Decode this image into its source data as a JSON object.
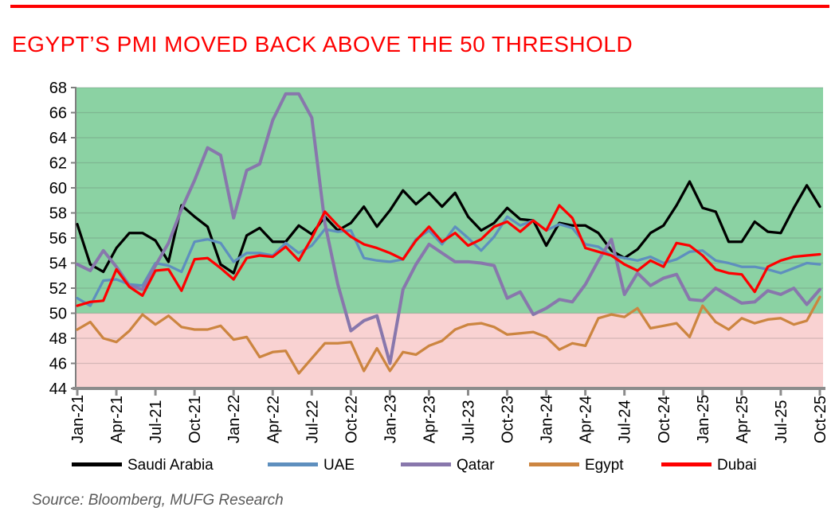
{
  "header": {
    "title": "EGYPT’S PMI MOVED BACK ABOVE THE 50 THRESHOLD"
  },
  "source_note": "Source: Bloomberg, MUFG Research",
  "colors": {
    "accent_red": "#fe0000",
    "axis_gray": "#7f7f7f",
    "axis_base_gray": "#8c8c8c",
    "source_text_gray": "#595959",
    "above_threshold_bg": "#8bd2a3",
    "below_threshold_bg": "#f9d2d2"
  },
  "chart_data": {
    "type": "line",
    "title": "",
    "xlabel": "",
    "ylabel": "",
    "ylim": [
      44,
      68
    ],
    "y_ticks": [
      44,
      46,
      48,
      50,
      52,
      54,
      56,
      58,
      60,
      62,
      64,
      66,
      68
    ],
    "threshold": 50,
    "x_start": "Jan-21",
    "x_interval": "monthly",
    "x_tick_step_months": 3,
    "x_tick_labels": [
      "Jan-21",
      "Apr-21",
      "Jul-21",
      "Oct-21",
      "Jan-22",
      "Apr-22",
      "Jul-22",
      "Oct-22",
      "Jan-23",
      "Apr-23",
      "Jul-23",
      "Oct-23",
      "Jan-24",
      "Apr-24",
      "Jul-24",
      "Oct-24",
      "Jan-25",
      "Apr-25",
      "Jul-25",
      "Oct-25"
    ],
    "grid": true,
    "legend_position": "bottom",
    "series": [
      {
        "name": "Saudi Arabia",
        "color": "#000000",
        "values": [
          57.1,
          53.9,
          53.3,
          55.2,
          56.4,
          56.4,
          55.8,
          54.1,
          58.6,
          57.7,
          56.9,
          53.9,
          53.2,
          56.2,
          56.8,
          55.7,
          55.7,
          57.0,
          56.3,
          57.7,
          56.6,
          57.2,
          58.5,
          56.9,
          58.2,
          59.8,
          58.7,
          59.6,
          58.5,
          59.6,
          57.7,
          56.6,
          57.2,
          58.4,
          57.5,
          57.4,
          55.4,
          57.2,
          57.0,
          57.0,
          56.4,
          55.0,
          54.4,
          55.1,
          56.4,
          57.0,
          58.6,
          60.5,
          58.4,
          58.1,
          55.7,
          55.7,
          57.3,
          56.5,
          56.4,
          58.4,
          60.2,
          58.5
        ]
      },
      {
        "name": "UAE",
        "color": "#5e8fbe",
        "values": [
          51.2,
          50.6,
          52.6,
          52.7,
          52.3,
          52.2,
          54.0,
          53.8,
          53.3,
          55.7,
          55.9,
          55.6,
          54.1,
          54.8,
          54.8,
          54.6,
          55.6,
          54.8,
          55.4,
          56.7,
          56.5,
          56.6,
          54.4,
          54.2,
          54.1,
          54.3,
          55.9,
          56.6,
          55.5,
          56.9,
          56.0,
          55.0,
          56.1,
          57.7,
          57.0,
          57.4,
          56.6,
          57.1,
          56.8,
          55.5,
          55.3,
          54.6,
          54.4,
          54.2,
          54.5,
          54.0,
          54.3,
          54.9,
          55.0,
          54.2,
          54.0,
          53.7,
          53.7,
          53.5,
          53.2,
          53.6,
          54.0,
          53.9
        ]
      },
      {
        "name": "Qatar",
        "color": "#8877ac",
        "values": [
          53.9,
          53.4,
          55.0,
          53.7,
          52.2,
          51.9,
          53.8,
          55.6,
          58.3,
          60.6,
          63.2,
          62.6,
          57.6,
          61.4,
          61.9,
          65.4,
          67.5,
          67.5,
          65.6,
          57.2,
          52.3,
          48.6,
          49.4,
          49.8,
          46.0,
          51.9,
          53.9,
          55.5,
          54.8,
          54.1,
          54.1,
          54.0,
          53.8,
          51.2,
          51.7,
          49.9,
          50.4,
          51.1,
          50.9,
          52.3,
          54.2,
          55.9,
          51.5,
          53.2,
          52.2,
          52.8,
          53.1,
          51.1,
          51.0,
          52.0,
          51.4,
          50.8,
          50.9,
          51.8,
          51.5,
          52.0,
          50.7,
          51.9
        ]
      },
      {
        "name": "Egypt",
        "color": "#cc8540",
        "values": [
          48.7,
          49.3,
          48.0,
          47.7,
          48.6,
          49.9,
          49.1,
          49.8,
          48.9,
          48.7,
          48.7,
          49.0,
          47.9,
          48.1,
          46.5,
          46.9,
          47.0,
          45.2,
          46.4,
          47.6,
          47.6,
          47.7,
          45.4,
          47.2,
          45.4,
          46.9,
          46.7,
          47.4,
          47.8,
          48.7,
          49.1,
          49.2,
          48.9,
          48.3,
          48.4,
          48.5,
          48.1,
          47.1,
          47.6,
          47.4,
          49.6,
          49.9,
          49.7,
          50.4,
          48.8,
          49.0,
          49.2,
          48.1,
          50.6,
          49.3,
          48.7,
          49.6,
          49.2,
          49.5,
          49.6,
          49.1,
          49.4,
          51.3
        ]
      },
      {
        "name": "Dubai",
        "color": "#fe0000",
        "values": [
          50.6,
          50.9,
          51.0,
          53.5,
          52.1,
          51.4,
          53.4,
          53.5,
          51.8,
          54.3,
          54.4,
          53.6,
          52.7,
          54.4,
          54.6,
          54.5,
          55.3,
          54.2,
          56.0,
          58.1,
          57.0,
          56.1,
          55.5,
          55.2,
          54.8,
          54.3,
          55.8,
          56.9,
          55.7,
          56.4,
          55.4,
          55.9,
          56.9,
          57.3,
          56.5,
          57.4,
          56.6,
          58.6,
          57.6,
          55.2,
          54.9,
          54.6,
          53.9,
          53.4,
          54.2,
          53.7,
          55.6,
          55.4,
          54.6,
          53.5,
          53.2,
          53.1,
          51.7,
          53.7,
          54.2,
          54.5,
          54.6,
          54.7
        ]
      }
    ]
  }
}
